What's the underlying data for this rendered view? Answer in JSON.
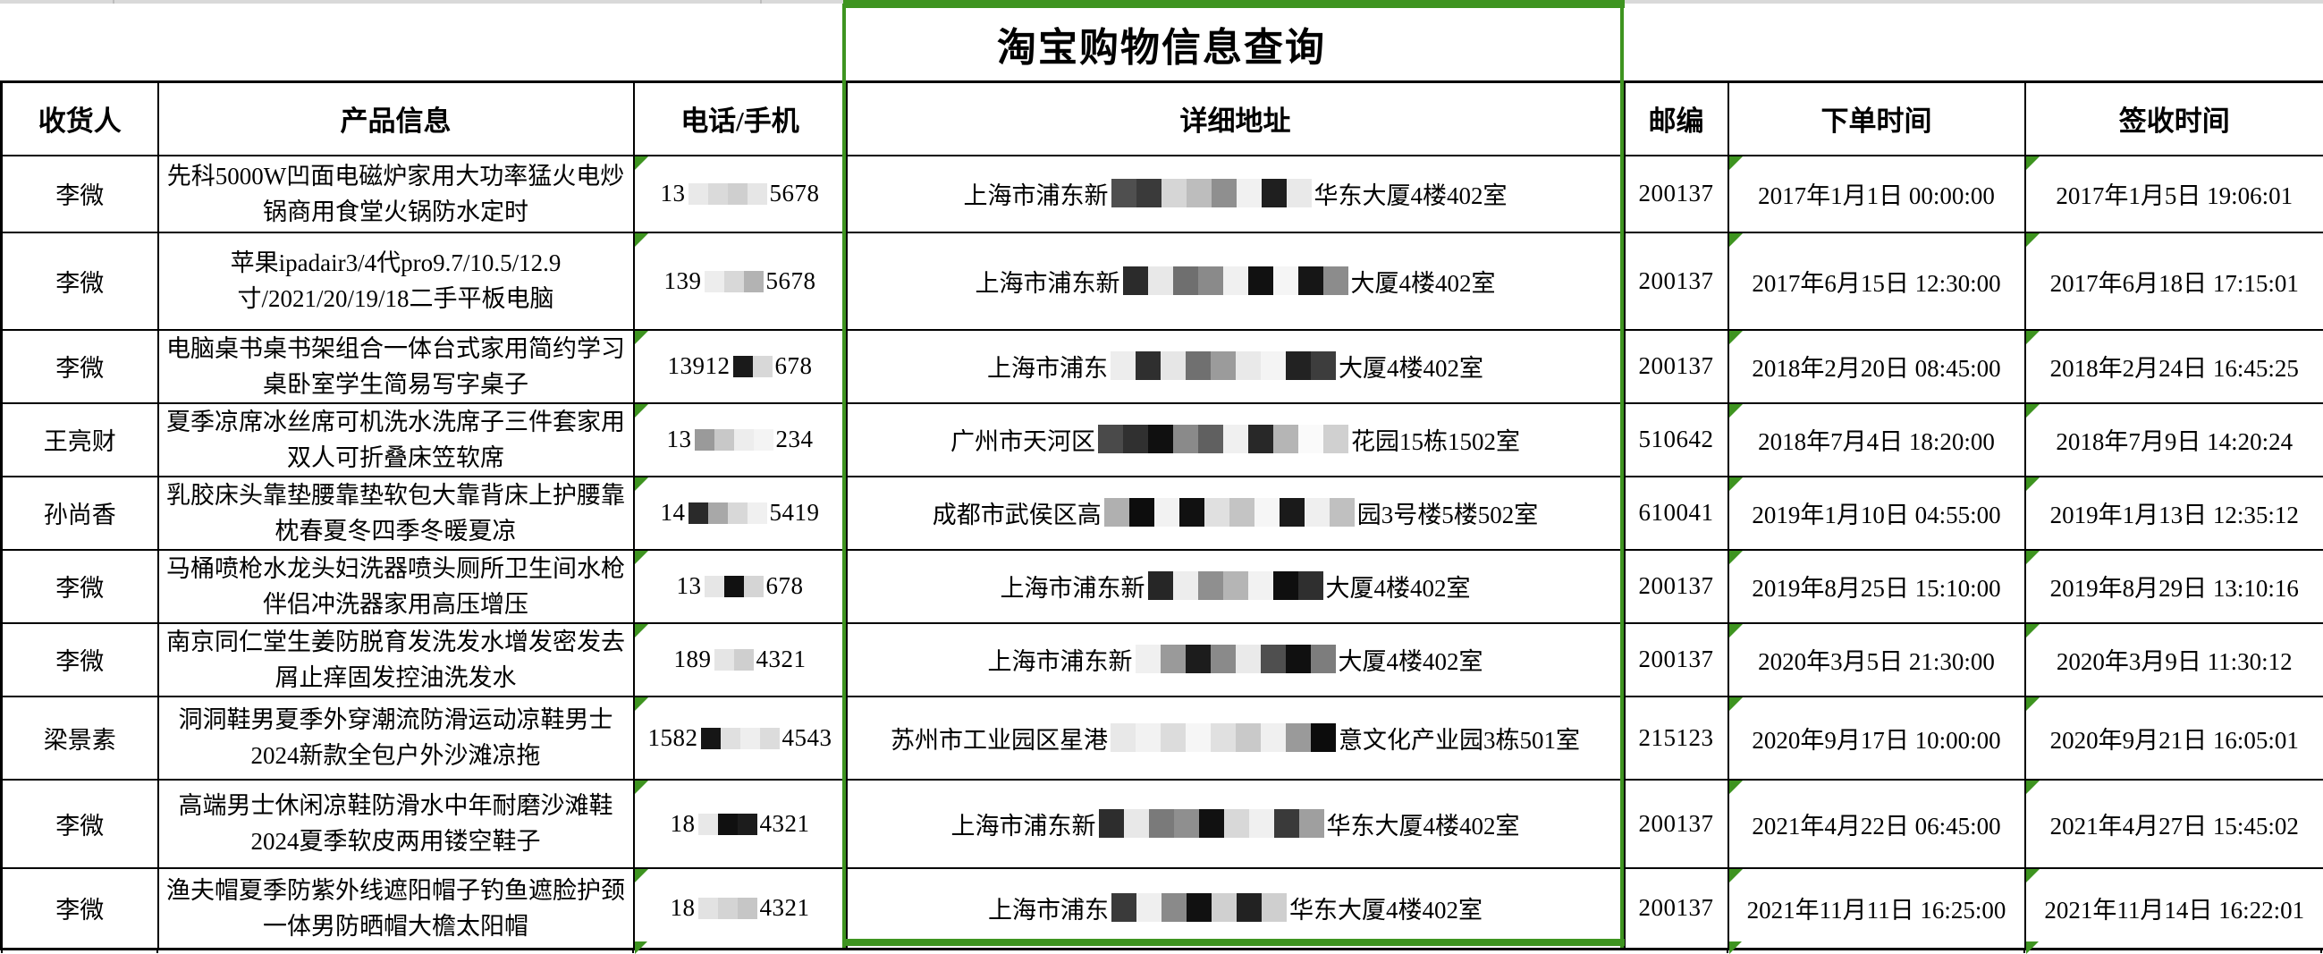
{
  "app": {
    "title": "淘宝购物信息查询"
  },
  "selection": {
    "color": "#3E9420"
  },
  "table": {
    "headers": [
      {
        "key": "recipient",
        "label": "收货人"
      },
      {
        "key": "product",
        "label": "产品信息"
      },
      {
        "key": "phone",
        "label": "电话/手机"
      },
      {
        "key": "address",
        "label": "详细地址"
      },
      {
        "key": "postcode",
        "label": "邮编"
      },
      {
        "key": "order-time",
        "label": "下单时间"
      },
      {
        "key": "sign-time",
        "label": "签收时间"
      }
    ],
    "rows": [
      {
        "recipient": "李微",
        "product": "先科5000W凹面电磁炉家用大功率猛火电炒锅商用食堂火锅防水定时",
        "phone_prefix": "13",
        "phone_suffix": "5678",
        "phone_blocks": [
          "#e9e9e9",
          "#dadada",
          "#cfcfcf",
          "#e6e6e6"
        ],
        "addr_prefix": "上海市浦东新",
        "addr_suffix": "华东大厦4楼402室",
        "addr_blocks": [
          "#4f4f4f",
          "#3a3a3a",
          "#d6d6d6",
          "#bdbdbd",
          "#8f8f8f",
          "#f1f1f1",
          "#1f1f1f",
          "#e9e9e9"
        ],
        "postcode": "200137",
        "order_time": "2017年1月1日 00:00:00",
        "sign_time": "2017年1月5日 19:06:01"
      },
      {
        "recipient": "李微",
        "product": "苹果ipadair3/4代pro9.7/10.5/12.9寸/2021/20/19/18二手平板电脑",
        "phone_prefix": "139",
        "phone_suffix": "5678",
        "phone_blocks": [
          "#ededed",
          "#d8d8d8",
          "#b3b3b3"
        ],
        "addr_prefix": "上海市浦东新",
        "addr_suffix": "大厦4楼402室",
        "addr_blocks": [
          "#2b2b2b",
          "#e8e8e8",
          "#6f6f6f",
          "#8a8a8a",
          "#f0f0f0",
          "#111111",
          "#f5f5f5",
          "#161616",
          "#8c8c8c"
        ],
        "postcode": "200137",
        "order_time": "2017年6月15日 12:30:00",
        "sign_time": "2017年6月18日 17:15:01"
      },
      {
        "recipient": "李微",
        "product": "电脑桌书桌书架组合一体台式家用简约学习桌卧室学生简易写字桌子",
        "phone_prefix": "13912",
        "phone_suffix": "678",
        "phone_blocks": [
          "#1a1a1a",
          "#d8d8d8"
        ],
        "addr_prefix": "上海市浦东",
        "addr_suffix": "大厦4楼402室",
        "addr_blocks": [
          "#ededed",
          "#2f2f2f",
          "#e6e6e6",
          "#707070",
          "#9b9b9b",
          "#e9e9e9",
          "#f4f4f4",
          "#222222",
          "#3d3d3d"
        ],
        "postcode": "200137",
        "order_time": "2018年2月20日 08:45:00",
        "sign_time": "2018年2月24日 16:45:25"
      },
      {
        "recipient": "王亮财",
        "product": "夏季凉席冰丝席可机洗水洗席子三件套家用双人可折叠床笠软席",
        "phone_prefix": "13",
        "phone_suffix": "234",
        "phone_blocks": [
          "#9a9a9a",
          "#c8c8c8",
          "#ededed",
          "#f4f4f4"
        ],
        "addr_prefix": "广州市天河区",
        "addr_suffix": "花园15栋1502室",
        "addr_blocks": [
          "#4a4a4a",
          "#303030",
          "#101010",
          "#8a8a8a",
          "#606060",
          "#f0f0f0",
          "#282828",
          "#b5b5b5",
          "#fafafa",
          "#d0d0d0"
        ],
        "postcode": "510642",
        "order_time": "2018年7月4日 18:20:00",
        "sign_time": "2018年7月9日 14:20:24"
      },
      {
        "recipient": "孙尚香",
        "product": "乳胶床头靠垫腰靠垫软包大靠背床上护腰靠枕春夏冬四季冬暖夏凉",
        "phone_prefix": "14",
        "phone_suffix": "5419",
        "phone_blocks": [
          "#2a2a2a",
          "#a8a8a8",
          "#d8d8d8",
          "#f0f0f0"
        ],
        "addr_prefix": "成都市武侯区高",
        "addr_suffix": "园3号楼5楼502室",
        "addr_blocks": [
          "#b0b0b0",
          "#0d0d0d",
          "#f2f2f2",
          "#111111",
          "#e0e0e0",
          "#c4c4c4",
          "#f6f6f6",
          "#1a1a1a",
          "#efefef",
          "#c0c0c0"
        ],
        "postcode": "610041",
        "order_time": "2019年1月10日 04:55:00",
        "sign_time": "2019年1月13日 12:35:12"
      },
      {
        "recipient": "李微",
        "product": "马桶喷枪水龙头妇洗器喷头厕所卫生间水枪伴侣冲洗器家用高压增压",
        "phone_prefix": "13",
        "phone_suffix": "678",
        "phone_blocks": [
          "#e6e6e6",
          "#111111",
          "#d5d5d5"
        ],
        "addr_prefix": "上海市浦东新",
        "addr_suffix": "大厦4楼402室",
        "addr_blocks": [
          "#262626",
          "#ededed",
          "#8f8f8f",
          "#b5b5b5",
          "#f2f2f2",
          "#0f0f0f",
          "#2f2f2f"
        ],
        "postcode": "200137",
        "order_time": "2019年8月25日 15:10:00",
        "sign_time": "2019年8月29日 13:10:16"
      },
      {
        "recipient": "李微",
        "product": "南京同仁堂生姜防脱育发洗发水增发密发去屑止痒固发控油洗发水",
        "phone_prefix": "189",
        "phone_suffix": "4321",
        "phone_blocks": [
          "#e5e5e5",
          "#cfcfcf"
        ],
        "addr_prefix": "上海市浦东新",
        "addr_suffix": "大厦4楼402室",
        "addr_blocks": [
          "#f0f0f0",
          "#9a9a9a",
          "#1c1c1c",
          "#8a8a8a",
          "#eaeaea",
          "#4f4f4f",
          "#101010",
          "#7d7d7d"
        ],
        "postcode": "200137",
        "order_time": "2020年3月5日 21:30:00",
        "sign_time": "2020年3月9日 11:30:12"
      },
      {
        "recipient": "梁景素",
        "product": "洞洞鞋男夏季外穿潮流防滑运动凉鞋男士2024新款全包户外沙滩凉拖",
        "phone_prefix": "1582",
        "phone_suffix": "4543",
        "phone_blocks": [
          "#161616",
          "#e0e0e0",
          "#eeeeee",
          "#dcdcdc"
        ],
        "addr_prefix": "苏州市工业园区星港",
        "addr_suffix": "意文化产业园3栋501室",
        "addr_blocks": [
          "#e8e8e8",
          "#f2f2f2",
          "#dcdcdc",
          "#f6f6f6",
          "#e0e0e0",
          "#c9c9c9",
          "#f0f0f0",
          "#9a9a9a",
          "#0c0c0c"
        ],
        "postcode": "215123",
        "order_time": "2020年9月17日 10:00:00",
        "sign_time": "2020年9月21日 16:05:01"
      },
      {
        "recipient": "李微",
        "product": "高端男士休闲凉鞋防滑水中年耐磨沙滩鞋2024夏季软皮两用镂空鞋子",
        "phone_prefix": "18",
        "phone_suffix": "4321",
        "phone_blocks": [
          "#e8e8e8",
          "#101010",
          "#1c1c1c"
        ],
        "addr_prefix": "上海市浦东新",
        "addr_suffix": "华东大厦4楼402室",
        "addr_blocks": [
          "#2d2d2d",
          "#e8e8e8",
          "#7a7a7a",
          "#8f8f8f",
          "#111111",
          "#d8d8d8",
          "#f0f0f0",
          "#3a3a3a",
          "#9f9f9f"
        ],
        "postcode": "200137",
        "order_time": "2021年4月22日 06:45:00",
        "sign_time": "2021年4月27日 15:45:02"
      },
      {
        "recipient": "李微",
        "product": "渔夫帽夏季防紫外线遮阳帽子钓鱼遮脸护颈一体男防晒帽大檐太阳帽",
        "phone_prefix": "18",
        "phone_suffix": "4321",
        "phone_blocks": [
          "#e2e2e2",
          "#d4d4d4",
          "#c6c6c6"
        ],
        "addr_prefix": "上海市浦东",
        "addr_suffix": "华东大厦4楼402室",
        "addr_blocks": [
          "#3a3a3a",
          "#efefef",
          "#8a8a8a",
          "#111111",
          "#d0d0d0",
          "#222222",
          "#cfcfcf"
        ],
        "postcode": "200137",
        "order_time": "2021年11月11日 16:25:00",
        "sign_time": "2021年11月14日 16:22:01"
      }
    ]
  }
}
